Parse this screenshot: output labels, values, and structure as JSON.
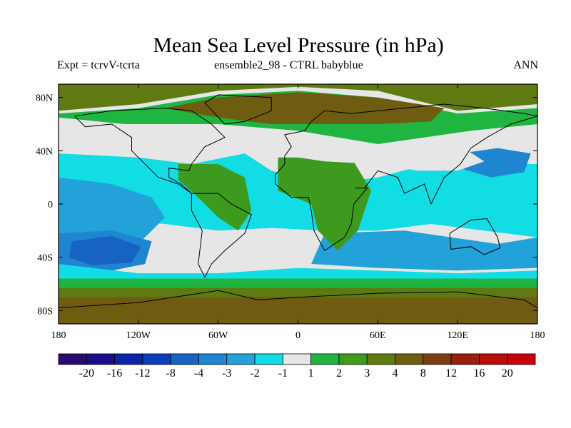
{
  "title": "Mean Sea Level Pressure (in hPa)",
  "subtitle_left": "Expt = tcrvV-tcrta",
  "subtitle_center": "ensemble2_98 - CTRL babyblue",
  "subtitle_right": "ANN",
  "map": {
    "projection": "cylindrical equidistant",
    "lon_range": [
      -180,
      180
    ],
    "lat_range": [
      -90,
      90
    ],
    "x_ticks": [
      {
        "lon": -180,
        "label": "180"
      },
      {
        "lon": -120,
        "label": "120W"
      },
      {
        "lon": -60,
        "label": "60W"
      },
      {
        "lon": 0,
        "label": "0"
      },
      {
        "lon": 60,
        "label": "60E"
      },
      {
        "lon": 120,
        "label": "120E"
      },
      {
        "lon": 180,
        "label": "180"
      }
    ],
    "y_ticks": [
      {
        "lat": 80,
        "label": "80N"
      },
      {
        "lat": 40,
        "label": "40N"
      },
      {
        "lat": 0,
        "label": "0"
      },
      {
        "lat": -40,
        "label": "40S"
      },
      {
        "lat": -80,
        "label": "80S"
      }
    ],
    "field_regions": [
      {
        "level": "4",
        "points": [
          [
            -180,
            70
          ],
          [
            -120,
            75
          ],
          [
            -60,
            85
          ],
          [
            0,
            88
          ],
          [
            60,
            85
          ],
          [
            120,
            70
          ],
          [
            180,
            75
          ],
          [
            180,
            90
          ],
          [
            -180,
            90
          ]
        ]
      },
      {
        "level": "2",
        "points": [
          [
            -180,
            65
          ],
          [
            -130,
            60
          ],
          [
            -60,
            60
          ],
          [
            0,
            55
          ],
          [
            60,
            45
          ],
          [
            130,
            55
          ],
          [
            180,
            60
          ],
          [
            180,
            72
          ],
          [
            120,
            68
          ],
          [
            60,
            80
          ],
          [
            0,
            85
          ],
          [
            -60,
            82
          ],
          [
            -120,
            72
          ],
          [
            -180,
            68
          ]
        ]
      },
      {
        "level": "8",
        "points": [
          [
            -100,
            72
          ],
          [
            -60,
            65
          ],
          [
            -20,
            60
          ],
          [
            20,
            60
          ],
          [
            60,
            60
          ],
          [
            100,
            62
          ],
          [
            110,
            72
          ],
          [
            60,
            80
          ],
          [
            0,
            84
          ],
          [
            -60,
            80
          ]
        ]
      },
      {
        "level": "-1",
        "points": [
          [
            -180,
            38
          ],
          [
            -120,
            35
          ],
          [
            -80,
            30
          ],
          [
            -40,
            38
          ],
          [
            -20,
            25
          ],
          [
            20,
            15
          ],
          [
            60,
            20
          ],
          [
            90,
            28
          ],
          [
            120,
            30
          ],
          [
            180,
            30
          ],
          [
            180,
            -25
          ],
          [
            140,
            -20
          ],
          [
            100,
            -15
          ],
          [
            60,
            -20
          ],
          [
            20,
            -20
          ],
          [
            -20,
            -18
          ],
          [
            -60,
            -20
          ],
          [
            -100,
            -15
          ],
          [
            -140,
            -12
          ],
          [
            -180,
            -10
          ]
        ]
      },
      {
        "level": "-2",
        "points": [
          [
            -180,
            20
          ],
          [
            -140,
            15
          ],
          [
            -110,
            5
          ],
          [
            -100,
            -10
          ],
          [
            -120,
            -30
          ],
          [
            -160,
            -35
          ],
          [
            -180,
            -30
          ]
        ]
      },
      {
        "level": "-3",
        "points": [
          [
            -180,
            -22
          ],
          [
            -140,
            -20
          ],
          [
            -110,
            -28
          ],
          [
            -115,
            -45
          ],
          [
            -150,
            -52
          ],
          [
            -180,
            -48
          ]
        ]
      },
      {
        "level": "-4",
        "points": [
          [
            -170,
            -28
          ],
          [
            -140,
            -24
          ],
          [
            -118,
            -32
          ],
          [
            -125,
            -44
          ],
          [
            -155,
            -46
          ],
          [
            -172,
            -40
          ]
        ]
      },
      {
        "level": "-3",
        "points": [
          [
            122,
            38
          ],
          [
            150,
            42
          ],
          [
            175,
            38
          ],
          [
            170,
            24
          ],
          [
            145,
            20
          ],
          [
            125,
            26
          ]
        ]
      },
      {
        "level": "-2",
        "points": [
          [
            20,
            -22
          ],
          [
            80,
            -20
          ],
          [
            150,
            -30
          ],
          [
            180,
            -25
          ],
          [
            180,
            -48
          ],
          [
            120,
            -50
          ],
          [
            60,
            -48
          ],
          [
            10,
            -45
          ]
        ]
      },
      {
        "level": "-1",
        "points": [
          [
            -180,
            -45
          ],
          [
            -120,
            -52
          ],
          [
            -60,
            -52
          ],
          [
            0,
            -48
          ],
          [
            60,
            -50
          ],
          [
            120,
            -52
          ],
          [
            180,
            -50
          ],
          [
            180,
            -58
          ],
          [
            -180,
            -58
          ]
        ]
      },
      {
        "level": "2",
        "points": [
          [
            -180,
            -56
          ],
          [
            180,
            -56
          ],
          [
            180,
            -64
          ],
          [
            -180,
            -64
          ]
        ]
      },
      {
        "level": "4",
        "points": [
          [
            -180,
            -63
          ],
          [
            180,
            -63
          ],
          [
            180,
            -74
          ],
          [
            -180,
            -74
          ]
        ]
      },
      {
        "level": "8",
        "points": [
          [
            -180,
            -70
          ],
          [
            180,
            -70
          ],
          [
            180,
            -90
          ],
          [
            -180,
            -90
          ]
        ]
      },
      {
        "level": "3",
        "points": [
          [
            -90,
            30
          ],
          [
            -60,
            30
          ],
          [
            -40,
            20
          ],
          [
            -35,
            -5
          ],
          [
            -45,
            -20
          ],
          [
            -60,
            -10
          ],
          [
            -75,
            5
          ],
          [
            -90,
            18
          ]
        ]
      },
      {
        "level": "3",
        "points": [
          [
            -15,
            35
          ],
          [
            40,
            35
          ],
          [
            55,
            10
          ],
          [
            45,
            -20
          ],
          [
            30,
            -35
          ],
          [
            15,
            -20
          ],
          [
            10,
            0
          ],
          [
            -15,
            10
          ]
        ]
      },
      {
        "level": "1",
        "points": [
          [
            -20,
            38
          ],
          [
            20,
            32
          ],
          [
            60,
            30
          ],
          [
            90,
            25
          ],
          [
            120,
            25
          ],
          [
            140,
            32
          ],
          [
            120,
            45
          ],
          [
            70,
            40
          ],
          [
            20,
            42
          ],
          [
            -20,
            45
          ]
        ]
      }
    ],
    "coastlines": [
      {
        "name": "north-america",
        "points": [
          [
            -168,
            66
          ],
          [
            -140,
            70
          ],
          [
            -100,
            72
          ],
          [
            -80,
            70
          ],
          [
            -65,
            60
          ],
          [
            -55,
            50
          ],
          [
            -70,
            43
          ],
          [
            -80,
            30
          ],
          [
            -82,
            25
          ],
          [
            -97,
            27
          ],
          [
            -97,
            20
          ],
          [
            -88,
            15
          ],
          [
            -80,
            8
          ],
          [
            -90,
            15
          ],
          [
            -105,
            20
          ],
          [
            -115,
            30
          ],
          [
            -125,
            40
          ],
          [
            -125,
            50
          ],
          [
            -140,
            60
          ],
          [
            -160,
            58
          ],
          [
            -168,
            66
          ]
        ]
      },
      {
        "name": "south-america",
        "points": [
          [
            -80,
            8
          ],
          [
            -60,
            8
          ],
          [
            -50,
            0
          ],
          [
            -35,
            -8
          ],
          [
            -40,
            -22
          ],
          [
            -55,
            -35
          ],
          [
            -65,
            -45
          ],
          [
            -70,
            -55
          ],
          [
            -75,
            -45
          ],
          [
            -72,
            -20
          ],
          [
            -80,
            -5
          ],
          [
            -80,
            8
          ]
        ]
      },
      {
        "name": "eurasia-africa",
        "points": [
          [
            -10,
            36
          ],
          [
            -5,
            43
          ],
          [
            -10,
            52
          ],
          [
            5,
            55
          ],
          [
            10,
            62
          ],
          [
            20,
            70
          ],
          [
            40,
            68
          ],
          [
            60,
            70
          ],
          [
            80,
            72
          ],
          [
            110,
            75
          ],
          [
            140,
            72
          ],
          [
            170,
            68
          ],
          [
            180,
            66
          ],
          [
            160,
            60
          ],
          [
            142,
            50
          ],
          [
            130,
            42
          ],
          [
            122,
            30
          ],
          [
            110,
            20
          ],
          [
            105,
            10
          ],
          [
            100,
            0
          ],
          [
            95,
            15
          ],
          [
            80,
            8
          ],
          [
            75,
            20
          ],
          [
            60,
            25
          ],
          [
            50,
            12
          ],
          [
            43,
            12
          ],
          [
            52,
            12
          ],
          [
            42,
            0
          ],
          [
            40,
            -15
          ],
          [
            35,
            -25
          ],
          [
            20,
            -35
          ],
          [
            12,
            -20
          ],
          [
            10,
            -5
          ],
          [
            8,
            5
          ],
          [
            -5,
            5
          ],
          [
            -17,
            15
          ],
          [
            -17,
            22
          ],
          [
            -10,
            30
          ],
          [
            -10,
            36
          ]
        ]
      },
      {
        "name": "australia",
        "points": [
          [
            114,
            -22
          ],
          [
            130,
            -12
          ],
          [
            142,
            -11
          ],
          [
            150,
            -25
          ],
          [
            152,
            -33
          ],
          [
            140,
            -38
          ],
          [
            130,
            -32
          ],
          [
            115,
            -34
          ],
          [
            114,
            -22
          ]
        ]
      },
      {
        "name": "greenland",
        "points": [
          [
            -55,
            60
          ],
          [
            -40,
            62
          ],
          [
            -20,
            70
          ],
          [
            -20,
            80
          ],
          [
            -60,
            82
          ],
          [
            -70,
            76
          ],
          [
            -55,
            60
          ]
        ]
      },
      {
        "name": "antarctica",
        "points": [
          [
            -180,
            -78
          ],
          [
            -120,
            -74
          ],
          [
            -60,
            -65
          ],
          [
            -30,
            -72
          ],
          [
            0,
            -70
          ],
          [
            60,
            -67
          ],
          [
            120,
            -66
          ],
          [
            170,
            -72
          ],
          [
            180,
            -78
          ]
        ]
      }
    ]
  },
  "colorbar": {
    "colors": [
      "#2a0a6e",
      "#1b0d8c",
      "#0c23a8",
      "#0a3eb8",
      "#1663c4",
      "#1f85d0",
      "#22a2d8",
      "#12dce4",
      "#e6e6e6",
      "#1fb540",
      "#3e9a1e",
      "#5e7a10",
      "#6e5c10",
      "#7a3e10",
      "#981f10",
      "#b80d0a",
      "#c8000a"
    ],
    "labels": [
      "-20",
      "-16",
      "-12",
      "-8",
      "-4",
      "-3",
      "-2",
      "-1",
      "1",
      "2",
      "3",
      "4",
      "8",
      "12",
      "16",
      "20"
    ]
  },
  "level_colors": {
    "-4": "#1663c4",
    "-3": "#1f85d0",
    "-2": "#22a2d8",
    "-1": "#12dce4",
    "1": "#e6e6e6",
    "2": "#1fb540",
    "3": "#3e9a1e",
    "4": "#5e7a10",
    "8": "#6e5c10"
  }
}
